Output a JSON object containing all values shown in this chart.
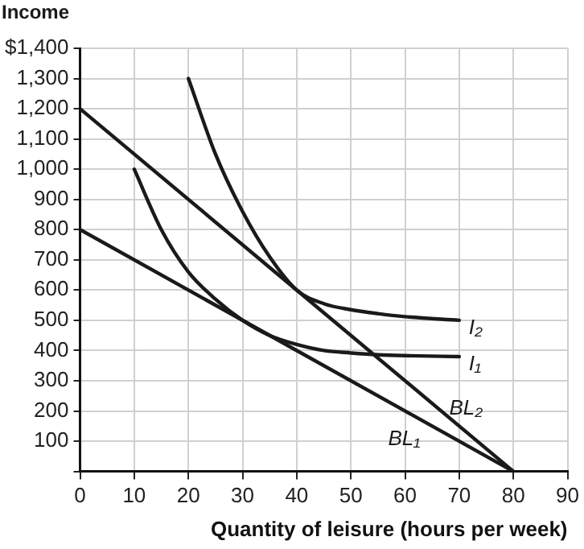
{
  "chart_data": {
    "type": "line",
    "xlabel": "Quantity of leisure (hours per week)",
    "ylabel": "Income",
    "xlim": [
      0,
      90
    ],
    "xticks": [
      0,
      10,
      20,
      30,
      40,
      50,
      60,
      70,
      80,
      90
    ],
    "ylim": [
      0,
      1400
    ],
    "yticks": [
      {
        "value": 0,
        "label": null
      },
      100,
      200,
      300,
      400,
      500,
      600,
      700,
      800,
      900,
      {
        "value": 1000,
        "label": "1,000"
      },
      {
        "value": 1100,
        "label": "1,100"
      },
      {
        "value": 1200,
        "label": "1,200"
      },
      {
        "value": 1300,
        "label": "1,300"
      },
      {
        "value": 1400,
        "label": "$1,400"
      }
    ],
    "grid": true,
    "legend": false,
    "marker": "none",
    "line_style": "solid",
    "series": [
      {
        "name": "BL₁",
        "color": "#1a1a1a",
        "x": [
          0,
          80
        ],
        "values": [
          800,
          0
        ]
      },
      {
        "name": "BL₂",
        "color": "#1a1a1a",
        "x": [
          0,
          80
        ],
        "values": [
          1200,
          0
        ]
      },
      {
        "name": "I₁",
        "color": "#1a1a1a",
        "x": [
          10,
          15,
          20,
          25,
          30,
          35,
          40,
          45,
          50,
          55,
          60,
          70
        ],
        "values": [
          1000,
          800,
          660,
          570,
          500,
          450,
          420,
          400,
          392,
          386,
          383,
          380
        ]
      },
      {
        "name": "I₂",
        "color": "#1a1a1a",
        "x": [
          20,
          25,
          30,
          35,
          40,
          45,
          50,
          55,
          60,
          70
        ],
        "values": [
          1300,
          1050,
          860,
          710,
          600,
          555,
          535,
          522,
          512,
          500
        ]
      }
    ]
  }
}
